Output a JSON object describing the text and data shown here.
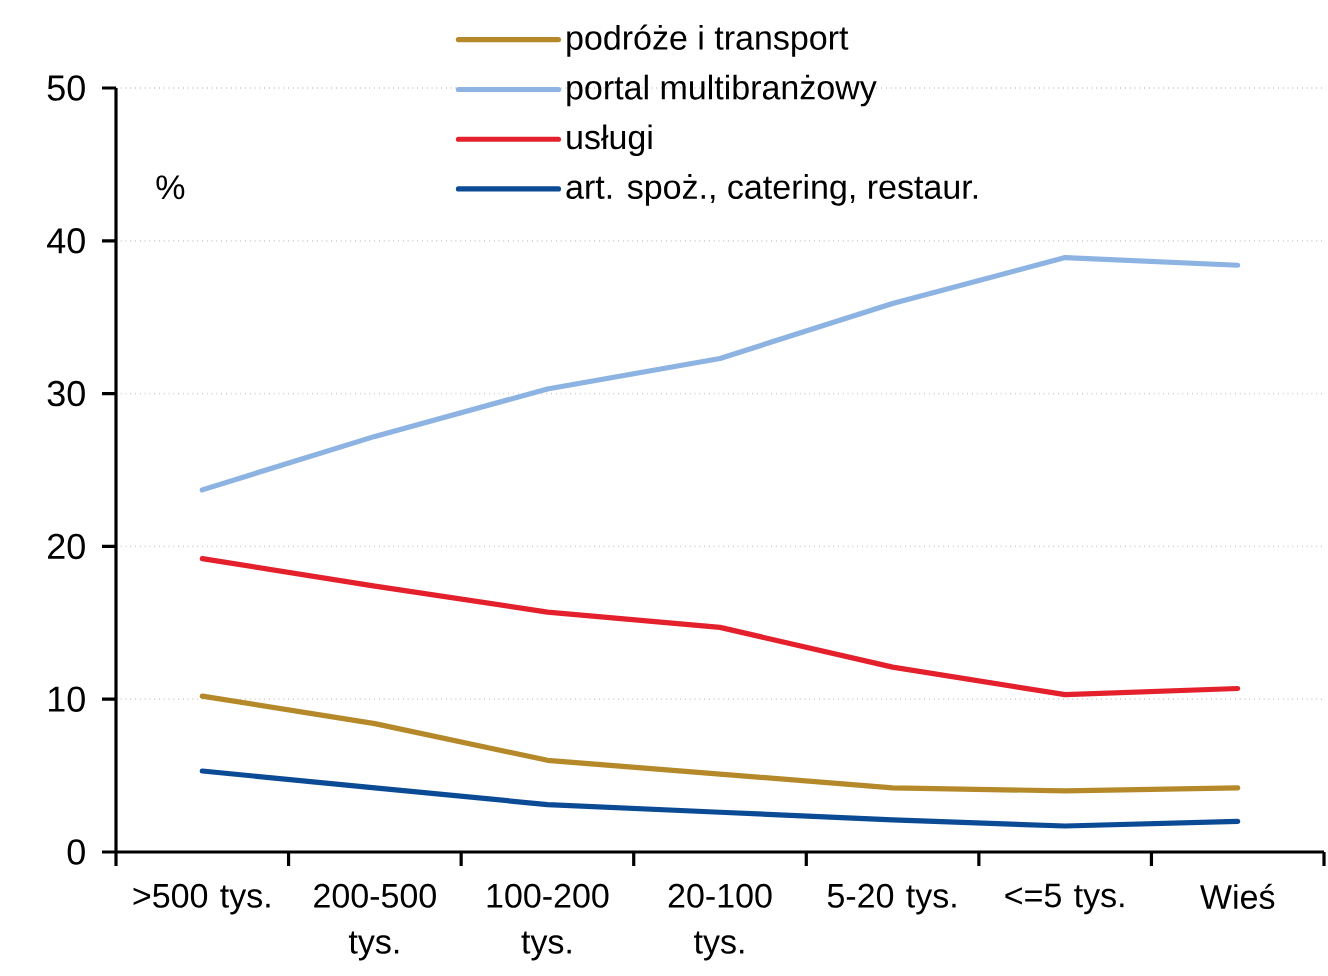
{
  "chart_data": {
    "type": "line",
    "categories": [
      ">500 tys.",
      "200-500 tys.",
      "100-200 tys.",
      "20-100 tys.",
      "5-20 tys.",
      "<=5 tys.",
      "Wieś"
    ],
    "series": [
      {
        "name": "podróże i transport",
        "color": "#b5892a",
        "values": [
          10.2,
          8.4,
          6.0,
          5.1,
          4.2,
          4.0,
          4.2
        ]
      },
      {
        "name": "portal multibranżowy",
        "color": "#8db3e2",
        "values": [
          23.7,
          27.2,
          30.3,
          32.3,
          35.9,
          38.9,
          38.4
        ]
      },
      {
        "name": "usługi",
        "color": "#e3202c",
        "values": [
          19.2,
          17.4,
          15.7,
          14.7,
          12.1,
          10.3,
          10.7
        ]
      },
      {
        "name": "art. spoż., catering, restaur.",
        "color": "#0b4a94",
        "values": [
          5.3,
          4.2,
          3.1,
          2.6,
          2.1,
          1.7,
          2.0
        ]
      }
    ],
    "ylabel": "%",
    "ylim": [
      0,
      50
    ],
    "yticks": [
      0,
      10,
      20,
      30,
      40,
      50
    ],
    "grid": "y",
    "legend": "top",
    "marker": "none",
    "line_style": "solid"
  }
}
